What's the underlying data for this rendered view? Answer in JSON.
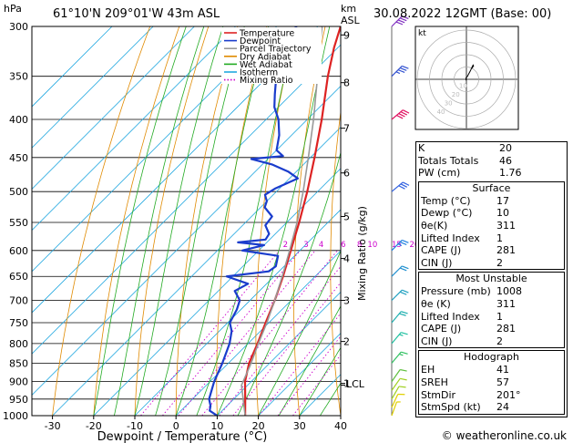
{
  "header": {
    "hpa_label": "hPa",
    "location": "61°10'N  209°01'W  43m  ASL",
    "km_label": "km",
    "asl_label": "ASL",
    "datetime": "30.08.2022  12GMT  (Base: 00)"
  },
  "legend": [
    {
      "label": "Temperature",
      "color": "#dd2222",
      "style": "solid"
    },
    {
      "label": "Dewpoint",
      "color": "#1a3ccc",
      "style": "solid"
    },
    {
      "label": "Parcel Trajectory",
      "color": "#999999",
      "style": "solid"
    },
    {
      "label": "Dry Adiabat",
      "color": "#e08a00",
      "style": "solid"
    },
    {
      "label": "Wet Adiabat",
      "color": "#22aa22",
      "style": "solid"
    },
    {
      "label": "Isotherm",
      "color": "#22a8e0",
      "style": "solid"
    },
    {
      "label": "Mixing Ratio",
      "color": "#cc00cc",
      "style": "dotted"
    }
  ],
  "chart_data": {
    "type": "line",
    "title": "30.08.2022  12GMT  (Base: 00)",
    "xlabel": "Dewpoint / Temperature (°C)",
    "ylabel": "hPa",
    "right_axis_label": "Mixing Ratio (g/kg)",
    "x_ticks": [
      "-30",
      "-20",
      "-10",
      "0",
      "10",
      "20",
      "30",
      "40"
    ],
    "xlim": [
      -35,
      40
    ],
    "ylim": [
      1000,
      300
    ],
    "y_scale": "log",
    "pressure_ticks": [
      "300",
      "350",
      "400",
      "450",
      "500",
      "550",
      "600",
      "650",
      "700",
      "750",
      "800",
      "850",
      "900",
      "950",
      "1000"
    ],
    "km_ticks": [
      {
        "label": "1",
        "p": 905
      },
      {
        "label": "2",
        "p": 795
      },
      {
        "label": "3",
        "p": 700
      },
      {
        "label": "4",
        "p": 615
      },
      {
        "label": "5",
        "p": 540
      },
      {
        "label": "6",
        "p": 472
      },
      {
        "label": "7",
        "p": 411
      },
      {
        "label": "8",
        "p": 357
      },
      {
        "label": "9",
        "p": 308
      }
    ],
    "lcl_label": "LCL",
    "lcl_p": 910,
    "mixing_ratio_labels": [
      "2",
      "3",
      "4",
      "6",
      "8",
      "10",
      "15",
      "20",
      "25"
    ],
    "mixing_ratio_values": [
      2,
      3,
      4,
      6,
      8,
      10,
      15,
      20,
      25
    ],
    "series": [
      {
        "name": "Temperature",
        "p": [
          1000,
          950,
          900,
          850,
          800,
          750,
          700,
          650,
          600,
          550,
          500,
          450,
          400,
          350,
          320,
          300
        ],
        "values": [
          16.8,
          12.8,
          8.5,
          5.0,
          2.3,
          -0.8,
          -4.0,
          -7.8,
          -12.2,
          -17.0,
          -22.5,
          -29.0,
          -36.5,
          -45.5,
          -51.0,
          -54.5
        ]
      },
      {
        "name": "Dewpoint",
        "p": [
          1000,
          985,
          970,
          950,
          900,
          850,
          800,
          770,
          750,
          720,
          700,
          680,
          665,
          650,
          640,
          630,
          610,
          600,
          590,
          585,
          580,
          570,
          555,
          540,
          525,
          515,
          505,
          495,
          480,
          470,
          460,
          452,
          448,
          440,
          420,
          400,
          385,
          370,
          355,
          340,
          325,
          315,
          308,
          303,
          300
        ],
        "values": [
          10.0,
          7.0,
          6.0,
          4.0,
          1.0,
          -1.5,
          -4.5,
          -7.0,
          -9.5,
          -11.0,
          -12.5,
          -16.0,
          -14.5,
          -21.5,
          -12.5,
          -12.0,
          -14.0,
          -24.0,
          -20.0,
          -27.0,
          -21.0,
          -21.5,
          -24.5,
          -25.0,
          -29.0,
          -30.0,
          -32.0,
          -31.0,
          -28.0,
          -32.0,
          -37.5,
          -44.0,
          -37.0,
          -40.0,
          -43.0,
          -47.0,
          -51.0,
          -54.0,
          -57.0,
          -58.5,
          -61.5,
          -63.5,
          -66.0,
          -64.0,
          -65.5
        ]
      },
      {
        "name": "Parcel Trajectory",
        "p": [
          1000,
          910,
          850,
          800,
          750,
          700,
          650,
          600,
          550,
          500,
          450,
          400,
          350,
          300
        ],
        "values": [
          16.8,
          8.5,
          5.5,
          2.5,
          -0.5,
          -4.0,
          -8.0,
          -12.5,
          -17.5,
          -23.5,
          -30.5,
          -38.5,
          -48.0,
          -59.0
        ]
      }
    ]
  },
  "wind_barbs": [
    {
      "p": 1000,
      "dir": 200,
      "speed": 5,
      "color": "#e0d000"
    },
    {
      "p": 975,
      "dir": 205,
      "speed": 10,
      "color": "#e0d000"
    },
    {
      "p": 950,
      "dir": 210,
      "speed": 10,
      "color": "#a0d020"
    },
    {
      "p": 925,
      "dir": 215,
      "speed": 10,
      "color": "#a0d020"
    },
    {
      "p": 900,
      "dir": 215,
      "speed": 10,
      "color": "#60c040"
    },
    {
      "p": 850,
      "dir": 220,
      "speed": 15,
      "color": "#30c060"
    },
    {
      "p": 800,
      "dir": 220,
      "speed": 15,
      "color": "#20c0a0"
    },
    {
      "p": 750,
      "dir": 220,
      "speed": 20,
      "color": "#20b0b0"
    },
    {
      "p": 700,
      "dir": 225,
      "speed": 20,
      "color": "#20a0c0"
    },
    {
      "p": 650,
      "dir": 225,
      "speed": 20,
      "color": "#2090d0"
    },
    {
      "p": 600,
      "dir": 225,
      "speed": 25,
      "color": "#2080e0"
    },
    {
      "p": 500,
      "dir": 230,
      "speed": 30,
      "color": "#3060e0"
    },
    {
      "p": 400,
      "dir": 230,
      "speed": 40,
      "color": "#e01060"
    },
    {
      "p": 350,
      "dir": 225,
      "speed": 35,
      "color": "#3050d0"
    },
    {
      "p": 300,
      "dir": 225,
      "speed": 40,
      "color": "#8030c0"
    }
  ],
  "hodograph": {
    "label": "kt",
    "ring_labels": [
      "10",
      "20",
      "30",
      "40"
    ],
    "trace_color": "#000000",
    "points_kt": [
      [
        -1,
        -2
      ],
      [
        -1,
        3
      ],
      [
        2,
        6
      ],
      [
        4,
        10
      ],
      [
        8,
        17
      ],
      [
        12,
        26
      ],
      [
        14,
        30
      ],
      [
        11,
        22
      ],
      [
        15,
        28
      ]
    ]
  },
  "indices_table": {
    "top": [
      {
        "label": "K",
        "value": "20"
      },
      {
        "label": "Totals Totals",
        "value": "46"
      },
      {
        "label": "PW (cm)",
        "value": "1.76"
      }
    ],
    "surface": {
      "title": "Surface",
      "rows": [
        {
          "label": "Temp (°C)",
          "value": "17"
        },
        {
          "label": "Dewp (°C)",
          "value": "10"
        },
        {
          "label": "θe(K)",
          "value": "311"
        },
        {
          "label": "Lifted Index",
          "value": "1"
        },
        {
          "label": "CAPE (J)",
          "value": "281"
        },
        {
          "label": "CIN (J)",
          "value": "2"
        }
      ]
    },
    "most_unstable": {
      "title": "Most Unstable",
      "rows": [
        {
          "label": "Pressure (mb)",
          "value": "1008"
        },
        {
          "label": "θe (K)",
          "value": "311"
        },
        {
          "label": "Lifted Index",
          "value": "1"
        },
        {
          "label": "CAPE (J)",
          "value": "281"
        },
        {
          "label": "CIN (J)",
          "value": "2"
        }
      ]
    },
    "hodograph": {
      "title": "Hodograph",
      "rows": [
        {
          "label": "EH",
          "value": "41"
        },
        {
          "label": "SREH",
          "value": "57"
        },
        {
          "label": "StmDir",
          "value": "201°"
        },
        {
          "label": "StmSpd (kt)",
          "value": "24"
        }
      ]
    }
  },
  "footer": {
    "copyright": "© weatheronline.co.uk"
  }
}
